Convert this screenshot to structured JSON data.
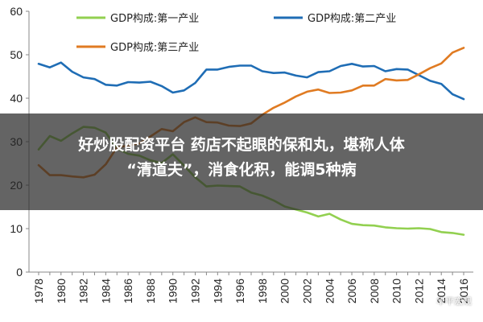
{
  "chart_data": {
    "type": "line",
    "x": [
      1978,
      1979,
      1980,
      1981,
      1982,
      1983,
      1984,
      1985,
      1986,
      1987,
      1988,
      1989,
      1990,
      1991,
      1992,
      1993,
      1994,
      1995,
      1996,
      1997,
      1998,
      1999,
      2000,
      2001,
      2002,
      2003,
      2004,
      2005,
      2006,
      2007,
      2008,
      2009,
      2010,
      2011,
      2012,
      2013,
      2014,
      2015,
      2016
    ],
    "x_tick_labels": [
      "1978",
      "1980",
      "1982",
      "1984",
      "1986",
      "1988",
      "1990",
      "1992",
      "1994",
      "1996",
      "1998",
      "2000",
      "2002",
      "2004",
      "2006",
      "2008",
      "2010",
      "2012",
      "2014",
      "2016"
    ],
    "y_tick_labels": [
      "0",
      "10",
      "20",
      "30",
      "40",
      "50",
      "60"
    ],
    "ylim": [
      0,
      60
    ],
    "xlim": [
      1978,
      2016
    ],
    "grid": false,
    "legend_position": "top",
    "series": [
      {
        "name": "GDP构成:第一产业",
        "color": "#92d050",
        "values": [
          28.2,
          31.3,
          30.2,
          31.9,
          33.4,
          33.2,
          32.1,
          28.4,
          27.2,
          26.8,
          25.7,
          25.1,
          27.1,
          24.5,
          21.8,
          19.7,
          19.9,
          19.8,
          19.7,
          18.3,
          17.6,
          16.5,
          15.1,
          14.4,
          13.7,
          12.8,
          13.4,
          12.1,
          11.1,
          10.8,
          10.7,
          10.3,
          10.1,
          10.0,
          10.1,
          9.9,
          9.2,
          9.0,
          8.6
        ]
      },
      {
        "name": "GDP构成:第二产业",
        "color": "#1f6db5",
        "values": [
          47.9,
          47.1,
          48.2,
          46.1,
          44.8,
          44.4,
          43.1,
          42.9,
          43.7,
          43.6,
          43.8,
          42.8,
          41.3,
          41.8,
          43.5,
          46.6,
          46.6,
          47.2,
          47.5,
          47.5,
          46.2,
          45.8,
          45.9,
          45.2,
          44.8,
          46.0,
          46.2,
          47.4,
          47.9,
          47.3,
          47.4,
          46.2,
          46.7,
          46.6,
          45.3,
          44.0,
          43.3,
          40.9,
          39.8
        ]
      },
      {
        "name": "GDP构成:第三产业",
        "color": "#e07b22",
        "values": [
          24.6,
          22.3,
          22.3,
          22.0,
          21.8,
          22.4,
          24.8,
          28.7,
          29.1,
          29.6,
          31.2,
          32.9,
          32.4,
          34.5,
          35.6,
          34.5,
          34.4,
          33.7,
          33.6,
          34.2,
          36.2,
          37.8,
          39.0,
          40.4,
          41.5,
          42.0,
          41.2,
          41.3,
          41.8,
          42.9,
          42.9,
          44.4,
          44.1,
          44.2,
          45.5,
          46.9,
          48.0,
          50.5,
          51.6
        ]
      }
    ]
  },
  "overlay": {
    "line1": "好炒股配资平台 药店不起眼的保和丸，堪称人体",
    "line2": "“清道夫”，消食化积，能调5种病"
  },
  "watermark": "华平宏观"
}
